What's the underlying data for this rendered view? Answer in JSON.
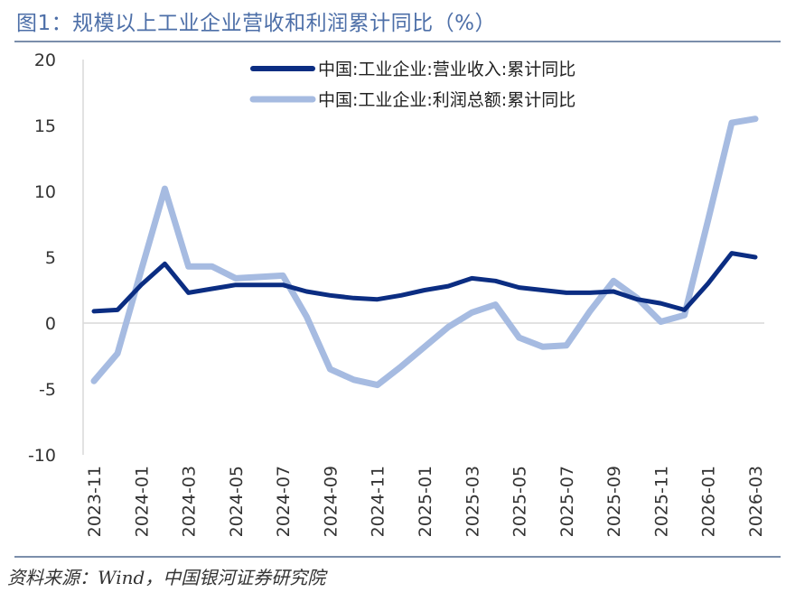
{
  "title": "图1：规模以上工业企业营收和利润累计同比（%）",
  "source": "资料来源：Wind，中国银河证券研究院",
  "chart_data": {
    "type": "line",
    "title": "图1：规模以上工业企业营收和利润累计同比（%）",
    "xlabel": "",
    "ylabel": "",
    "ylim": [
      -10,
      20
    ],
    "yticks": [
      -10,
      -5,
      0,
      5,
      10,
      15,
      20
    ],
    "grid": false,
    "legend_position": "top-right",
    "x": [
      "2023-11",
      "2023-12",
      "2024-01",
      "2024-02",
      "2024-03",
      "2024-04",
      "2024-05",
      "2024-06",
      "2024-07",
      "2024-08",
      "2024-09",
      "2024-10",
      "2024-11",
      "2024-12",
      "2025-01",
      "2025-02",
      "2025-03",
      "2025-04",
      "2025-05",
      "2025-06",
      "2025-07",
      "2025-08",
      "2025-09",
      "2025-10",
      "2025-11",
      "2025-12",
      "2026-01",
      "2026-02",
      "2026-03"
    ],
    "x_tick_labels": [
      "2023-11",
      "2024-01",
      "2024-03",
      "2024-05",
      "2024-07",
      "2024-09",
      "2024-11",
      "2025-01",
      "2025-03",
      "2025-05",
      "2025-07",
      "2025-09",
      "2025-11",
      "2026-01",
      "2026-03"
    ],
    "series": [
      {
        "name": "中国:工业企业:营业收入:累计同比",
        "color": "#0b2d82",
        "values": [
          0.9,
          1.0,
          2.9,
          4.5,
          2.3,
          2.6,
          2.9,
          2.9,
          2.9,
          2.4,
          2.1,
          1.9,
          1.8,
          2.1,
          2.5,
          2.8,
          3.4,
          3.2,
          2.7,
          2.5,
          2.3,
          2.3,
          2.4,
          1.8,
          1.5,
          1.0,
          3.0,
          5.3,
          5.0
        ]
      },
      {
        "name": "中国:工业企业:利润总额:累计同比",
        "color": "#a6bbe1",
        "values": [
          -4.4,
          -2.3,
          4.0,
          10.2,
          4.3,
          4.3,
          3.4,
          3.5,
          3.6,
          0.5,
          -3.5,
          -4.3,
          -4.7,
          -3.3,
          -1.8,
          -0.3,
          0.8,
          1.4,
          -1.1,
          -1.8,
          -1.7,
          0.9,
          3.2,
          1.9,
          0.1,
          0.6,
          7.8,
          15.2,
          15.5
        ]
      }
    ]
  }
}
